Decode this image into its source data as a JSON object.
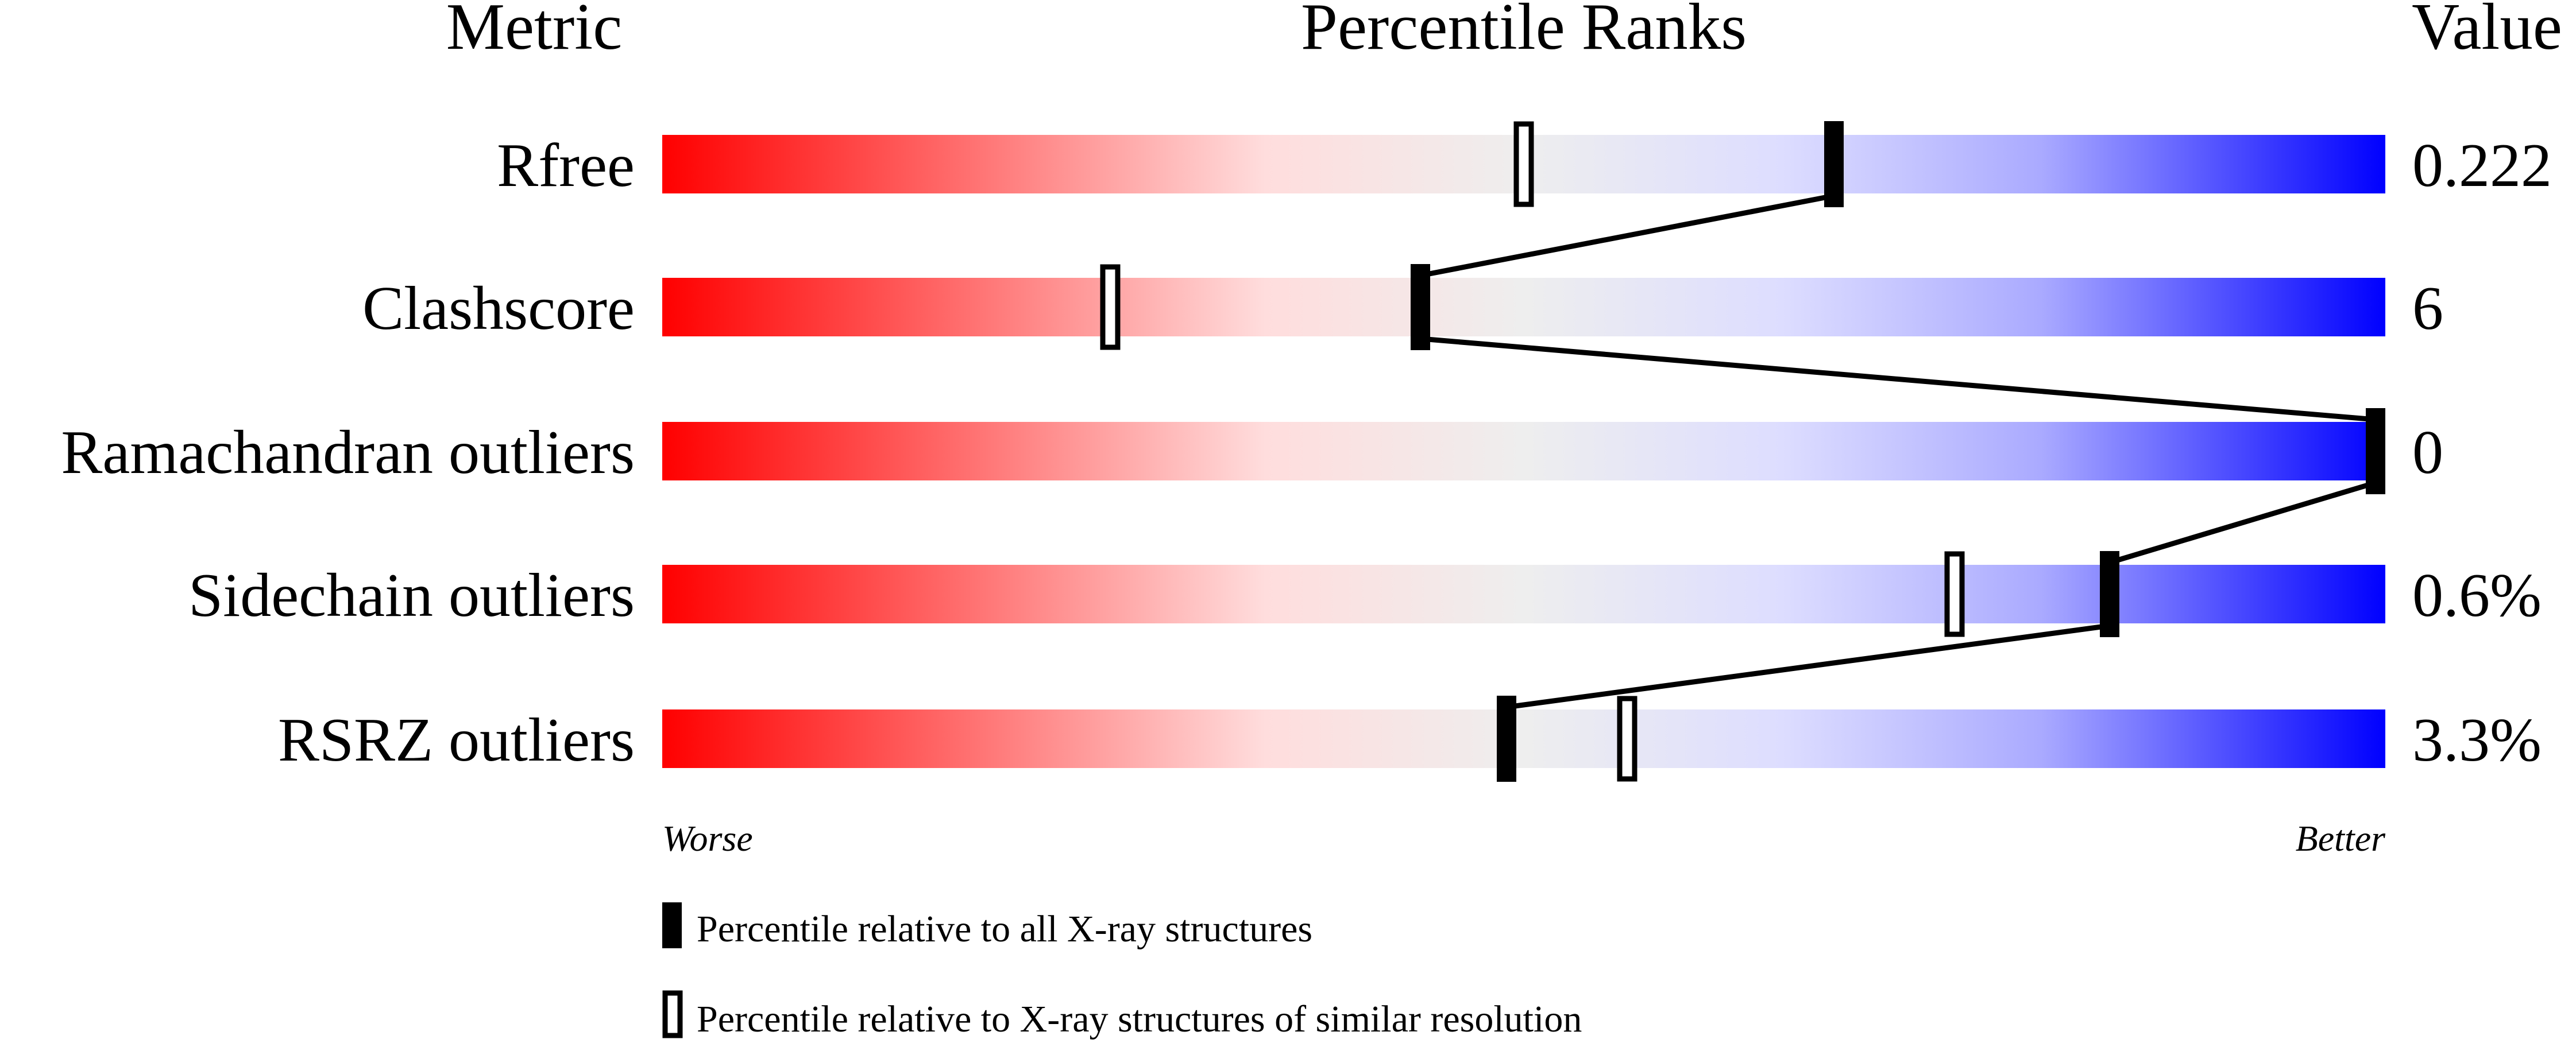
{
  "chart_data": {
    "type": "bar",
    "title": "Percentile Ranks",
    "column_headers": {
      "metric": "Metric",
      "percentile": "Percentile Ranks",
      "value": "Value"
    },
    "xlim": [
      0,
      100
    ],
    "scale_labels": {
      "left": "Worse",
      "right": "Better"
    },
    "gradient_colors": [
      "#ff0000",
      "#ffdddd",
      "#eeeeee",
      "#ddddff",
      "#0000ff"
    ],
    "metrics": [
      {
        "name": "Rfree",
        "value": "0.222",
        "percentile_all": 68,
        "percentile_similar": 50
      },
      {
        "name": "Clashscore",
        "value": "6",
        "percentile_all": 44,
        "percentile_similar": 26
      },
      {
        "name": "Ramachandran outliers",
        "value": "0",
        "percentile_all": 100,
        "percentile_similar": 100
      },
      {
        "name": "Sidechain outliers",
        "value": "0.6%",
        "percentile_all": 84,
        "percentile_similar": 75
      },
      {
        "name": "RSRZ outliers",
        "value": "3.3%",
        "percentile_all": 49,
        "percentile_similar": 56
      }
    ],
    "legend": {
      "all": "Percentile relative to all X-ray structures",
      "similar": "Percentile relative to X-ray structures of similar resolution"
    }
  }
}
